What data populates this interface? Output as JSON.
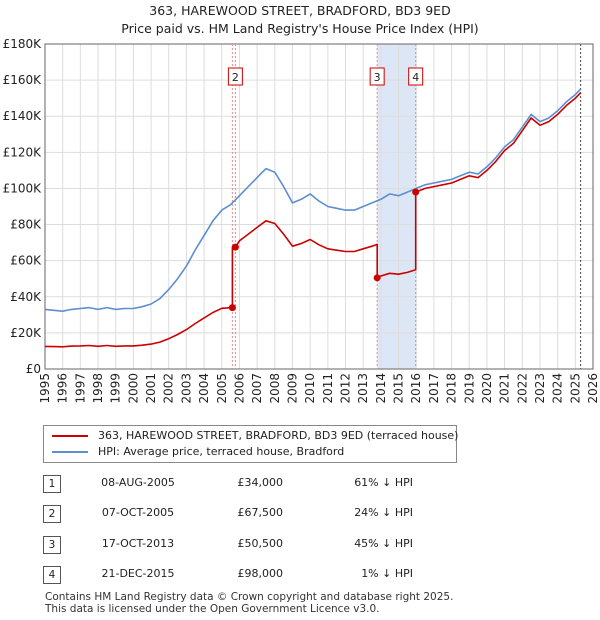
{
  "title_line1": "363, HAREWOOD STREET, BRADFORD, BD3 9ED",
  "title_line2": "Price paid vs. HM Land Registry's House Price Index (HPI)",
  "legend": {
    "series1": "363, HAREWOOD STREET, BRADFORD, BD3 9ED (terraced house)",
    "series2": "HPI: Average price, terraced house, Bradford"
  },
  "colors": {
    "price_line": "#cc0000",
    "hpi_line": "#5b8fcf",
    "marker_band": "#dde6f5",
    "grid": "#dddddd",
    "marker_line": "#e88a8a"
  },
  "transactions": [
    {
      "num": "1",
      "date": "08-AUG-2005",
      "price": "£34,000",
      "hpi": "61% ↓ HPI"
    },
    {
      "num": "2",
      "date": "07-OCT-2005",
      "price": "£67,500",
      "hpi": "24% ↓ HPI"
    },
    {
      "num": "3",
      "date": "17-OCT-2013",
      "price": "£50,500",
      "hpi": "45% ↓ HPI"
    },
    {
      "num": "4",
      "date": "21-DEC-2015",
      "price": "£98,000",
      "hpi": "1% ↓ HPI"
    }
  ],
  "footer": {
    "line1": "Contains HM Land Registry data © Crown copyright and database right 2025.",
    "line2": "This data is licensed under the Open Government Licence v3.0."
  },
  "chart_data": {
    "type": "line",
    "xlim": [
      1995,
      2026
    ],
    "ylim": [
      0,
      180000
    ],
    "y_ticks": [
      0,
      20000,
      40000,
      60000,
      80000,
      100000,
      120000,
      140000,
      160000,
      180000
    ],
    "y_tick_labels": [
      "£0",
      "£20K",
      "£40K",
      "£60K",
      "£80K",
      "£100K",
      "£120K",
      "£140K",
      "£160K",
      "£180K"
    ],
    "x_ticks": [
      1995,
      1996,
      1997,
      1998,
      1999,
      2000,
      2001,
      2002,
      2003,
      2004,
      2005,
      2006,
      2007,
      2008,
      2009,
      2010,
      2011,
      2012,
      2013,
      2014,
      2015,
      2016,
      2017,
      2018,
      2019,
      2020,
      2021,
      2022,
      2023,
      2024,
      2025,
      2026
    ],
    "x_tick_labels": [
      "1995",
      "1996",
      "1997",
      "1998",
      "1999",
      "2000",
      "2001",
      "2002",
      "2003",
      "2004",
      "2005",
      "2006",
      "2007",
      "2008",
      "2009",
      "2010",
      "2011",
      "2012",
      "2013",
      "2014",
      "2015",
      "2016",
      "2017",
      "2018",
      "2019",
      "2020",
      "2021",
      "2022",
      "2023",
      "2024",
      "2025",
      "2026"
    ],
    "band": [
      2013.79,
      2015.97
    ],
    "marker_years": [
      2005.6,
      2005.77,
      2013.79,
      2015.97
    ],
    "marker_labels": [
      "2",
      "3",
      "4"
    ],
    "marker_label_years": [
      2005.77,
      2013.79,
      2015.97
    ],
    "sales": [
      {
        "x": 2005.6,
        "y": 34000
      },
      {
        "x": 2005.77,
        "y": 67500
      },
      {
        "x": 2013.79,
        "y": 50500
      },
      {
        "x": 2015.97,
        "y": 98000
      }
    ],
    "series": [
      {
        "name": "HPI: Average price, terraced house, Bradford",
        "x": [
          1995,
          1995.5,
          1996,
          1996.5,
          1997,
          1997.5,
          1998,
          1998.5,
          1999,
          1999.5,
          2000,
          2000.5,
          2001,
          2001.5,
          2002,
          2002.5,
          2003,
          2003.5,
          2004,
          2004.5,
          2005,
          2005.5,
          2006,
          2006.5,
          2007,
          2007.5,
          2008,
          2008.5,
          2009,
          2009.5,
          2010,
          2010.5,
          2011,
          2011.5,
          2012,
          2012.5,
          2013,
          2013.5,
          2014,
          2014.5,
          2015,
          2015.5,
          2016,
          2016.5,
          2017,
          2017.5,
          2018,
          2018.5,
          2019,
          2019.5,
          2020,
          2020.5,
          2021,
          2021.5,
          2022,
          2022.5,
          2023,
          2023.5,
          2024,
          2024.5,
          2025,
          2025.3
        ],
        "values": [
          33000,
          32500,
          32000,
          33000,
          33500,
          34000,
          33000,
          34000,
          33000,
          33500,
          33500,
          34500,
          36000,
          39000,
          44000,
          50000,
          57000,
          66000,
          74000,
          82000,
          88000,
          91000,
          96000,
          101000,
          106000,
          111000,
          109000,
          101000,
          92000,
          94000,
          97000,
          93000,
          90000,
          89000,
          88000,
          88000,
          90000,
          92000,
          94000,
          97000,
          96000,
          98000,
          100000,
          102000,
          103000,
          104000,
          105000,
          107000,
          109000,
          108000,
          112000,
          117000,
          123000,
          127000,
          134000,
          141000,
          137000,
          139000,
          143000,
          148000,
          152000,
          155000
        ]
      },
      {
        "name": "363, HAREWOOD STREET, BRADFORD, BD3 9ED (terraced house)",
        "x": [
          1995,
          1995.5,
          1996,
          1996.5,
          1997,
          1997.5,
          1998,
          1998.5,
          1999,
          1999.5,
          2000,
          2000.5,
          2001,
          2001.5,
          2002,
          2002.5,
          2003,
          2003.5,
          2004,
          2004.5,
          2005,
          2005.6,
          2005.6,
          2005.77,
          2006,
          2006.5,
          2007,
          2007.5,
          2008,
          2008.5,
          2009,
          2009.5,
          2010,
          2010.5,
          2011,
          2011.5,
          2012,
          2012.5,
          2013,
          2013.5,
          2013.79,
          2013.79,
          2014,
          2014.5,
          2015,
          2015.5,
          2015.97,
          2015.97,
          2016.5,
          2017,
          2017.5,
          2018,
          2018.5,
          2019,
          2019.5,
          2020,
          2020.5,
          2021,
          2021.5,
          2022,
          2022.5,
          2023,
          2023.5,
          2024,
          2024.5,
          2025,
          2025.3
        ],
        "values": [
          12500,
          12400,
          12300,
          12700,
          12800,
          13000,
          12600,
          13000,
          12600,
          12800,
          12800,
          13200,
          13800,
          14900,
          16800,
          19100,
          21800,
          25200,
          28300,
          31300,
          33600,
          34000,
          67500,
          67500,
          71000,
          74700,
          78400,
          82100,
          80600,
          74700,
          68000,
          69500,
          71700,
          68800,
          66600,
          65800,
          65100,
          65100,
          66600,
          68000,
          69000,
          50500,
          51500,
          53000,
          52500,
          53500,
          55000,
          98000,
          100000,
          101000,
          102000,
          103000,
          105000,
          107000,
          106000,
          110000,
          115000,
          121000,
          125000,
          132000,
          139000,
          135000,
          137000,
          141000,
          146000,
          150000,
          153000
        ]
      }
    ]
  }
}
